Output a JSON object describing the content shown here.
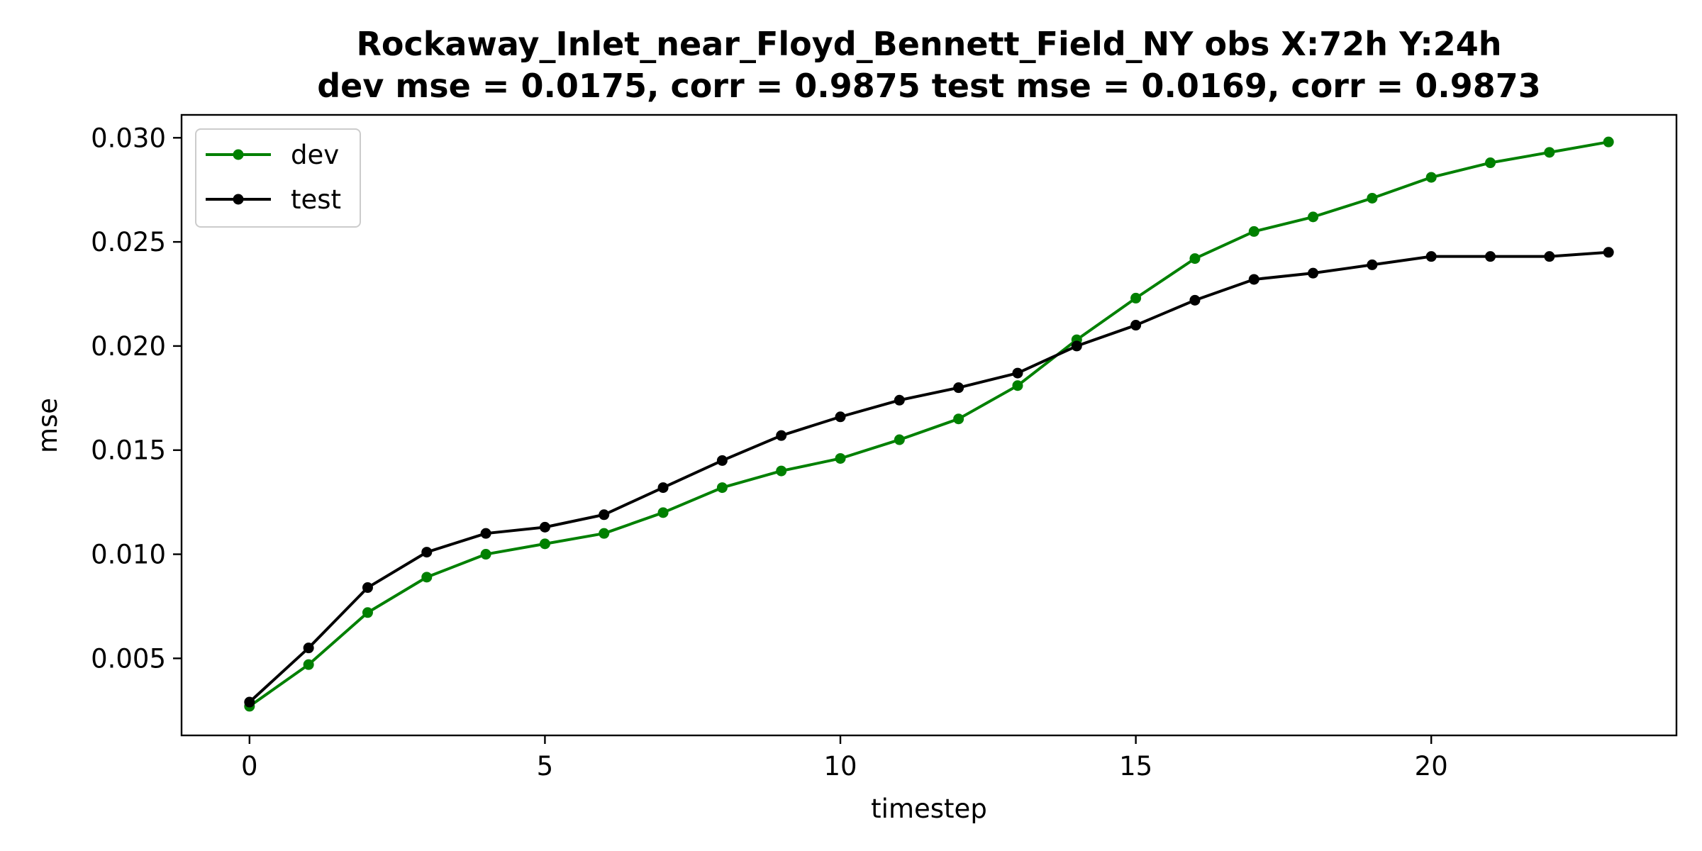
{
  "chart_data": {
    "type": "line",
    "title_line1": "Rockaway_Inlet_near_Floyd_Bennett_Field_NY   obs   X:72h   Y:24h",
    "title_line2": "dev mse = 0.0175, corr = 0.9875   test mse = 0.0169, corr = 0.9873",
    "xlabel": "timestep",
    "ylabel": "mse",
    "xlim": [
      -1.15,
      24.15
    ],
    "ylim": [
      0.0013,
      0.0311
    ],
    "xticks": [
      0,
      5,
      10,
      15,
      20
    ],
    "yticks": [
      0.005,
      0.01,
      0.015,
      0.02,
      0.025,
      0.03
    ],
    "ytick_labels": [
      "0.005",
      "0.010",
      "0.015",
      "0.020",
      "0.025",
      "0.030"
    ],
    "grid": false,
    "legend_position": "upper-left",
    "x": [
      0,
      1,
      2,
      3,
      4,
      5,
      6,
      7,
      8,
      9,
      10,
      11,
      12,
      13,
      14,
      15,
      16,
      17,
      18,
      19,
      20,
      21,
      22,
      23
    ],
    "series": [
      {
        "name": "dev",
        "color": "#008000",
        "marker": "circle",
        "values": [
          0.0027,
          0.0047,
          0.0072,
          0.0089,
          0.01,
          0.0105,
          0.011,
          0.012,
          0.0132,
          0.014,
          0.0146,
          0.0155,
          0.0165,
          0.0181,
          0.0203,
          0.0223,
          0.0242,
          0.0255,
          0.0262,
          0.0271,
          0.0281,
          0.0288,
          0.0293,
          0.0298
        ]
      },
      {
        "name": "test",
        "color": "#000000",
        "marker": "circle",
        "values": [
          0.0029,
          0.0055,
          0.0084,
          0.0101,
          0.011,
          0.0113,
          0.0119,
          0.0132,
          0.0145,
          0.0157,
          0.0166,
          0.0174,
          0.018,
          0.0187,
          0.02,
          0.021,
          0.0222,
          0.0232,
          0.0235,
          0.0239,
          0.0243,
          0.0243,
          0.0243,
          0.0245
        ]
      }
    ]
  }
}
